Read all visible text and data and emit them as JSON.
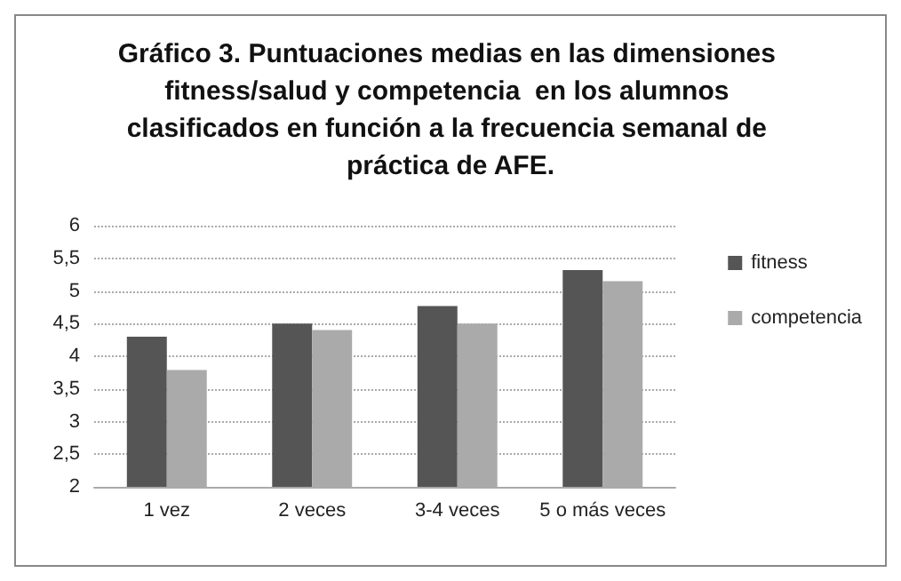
{
  "chart_data": {
    "type": "bar",
    "title": "Gráfico 3. Puntuaciones medias en las dimensiones fitness/salud y competencia  en los alumnos clasificados en función a la frecuencia semanal de práctica de AFE.",
    "categories": [
      "1 vez",
      "2 veces",
      "3-4 veces",
      "5 o más veces"
    ],
    "series": [
      {
        "name": "fitness",
        "color": "#555555",
        "values": [
          4.3,
          4.5,
          4.77,
          5.32
        ]
      },
      {
        "name": "competencia",
        "color": "#aaaaaa",
        "values": [
          3.79,
          4.4,
          4.5,
          5.15
        ]
      }
    ],
    "ylim": [
      2,
      6
    ],
    "yticks": [
      2,
      {
        "value": 2.5,
        "label": "2,5"
      },
      3,
      {
        "value": 3.5,
        "label": "3,5"
      },
      4,
      {
        "value": 4.5,
        "label": "4,5"
      },
      5,
      {
        "value": 5.5,
        "label": "5,5"
      },
      6
    ],
    "grid": "y",
    "legend": "right"
  }
}
